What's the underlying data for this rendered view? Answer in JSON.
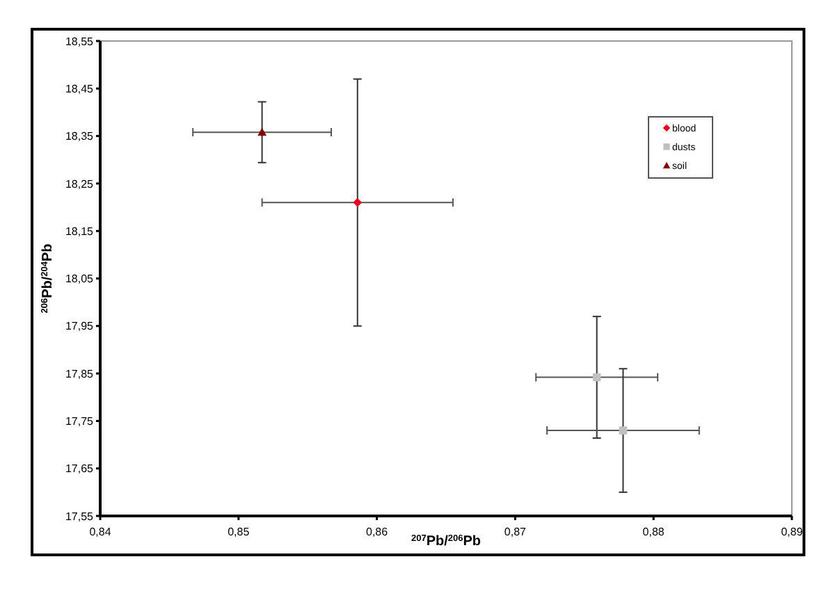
{
  "chart_data": {
    "type": "scatter",
    "xlabel": "$^{207}$Pb/$^{206}$Pb",
    "ylabel": "$^{206}$Pb/$^{204}$Pb",
    "xlim": [
      0.84,
      0.89
    ],
    "xticks": [
      {
        "value": 0.84,
        "label": "0,84"
      },
      {
        "value": 0.85,
        "label": "0,85"
      },
      {
        "value": 0.86,
        "label": "0,86"
      },
      {
        "value": 0.87,
        "label": "0,87"
      },
      {
        "value": 0.88,
        "label": "0,88"
      },
      {
        "value": 0.89,
        "label": "0,89"
      }
    ],
    "ylim": [
      17.55,
      18.55
    ],
    "yticks": [
      {
        "value": 17.55,
        "label": "17,55"
      },
      {
        "value": 17.65,
        "label": "17,65"
      },
      {
        "value": 17.75,
        "label": "17,75"
      },
      {
        "value": 17.85,
        "label": "17,85"
      },
      {
        "value": 17.95,
        "label": "17,95"
      },
      {
        "value": 18.05,
        "label": "18,05"
      },
      {
        "value": 18.15,
        "label": "18,15"
      },
      {
        "value": 18.25,
        "label": "18,25"
      },
      {
        "value": 18.35,
        "label": "18,35"
      },
      {
        "value": 18.45,
        "label": "18,45"
      },
      {
        "value": 18.55,
        "label": "18,55"
      }
    ],
    "legend": "top right",
    "grid": false,
    "series": [
      {
        "name": "blood",
        "color": "#e8001c",
        "marker": "diamond",
        "x": [
          0.8586
        ],
        "values": [
          18.21
        ],
        "errors": [
          0.26
        ],
        "xerrors": [
          0.0069
        ]
      },
      {
        "name": "dusts",
        "color": "#c0c0c0",
        "marker": "square",
        "x": [
          0.8759,
          0.8778
        ],
        "values": [
          17.842,
          17.73
        ],
        "errors": [
          0.128,
          0.13
        ],
        "xerrors": [
          0.0044,
          0.0055
        ]
      },
      {
        "name": "soil",
        "color": "#800000",
        "marker": "triangle",
        "x": [
          0.8517
        ],
        "values": [
          18.358
        ],
        "errors": [
          0.064
        ],
        "xerrors": [
          0.005
        ]
      }
    ]
  }
}
